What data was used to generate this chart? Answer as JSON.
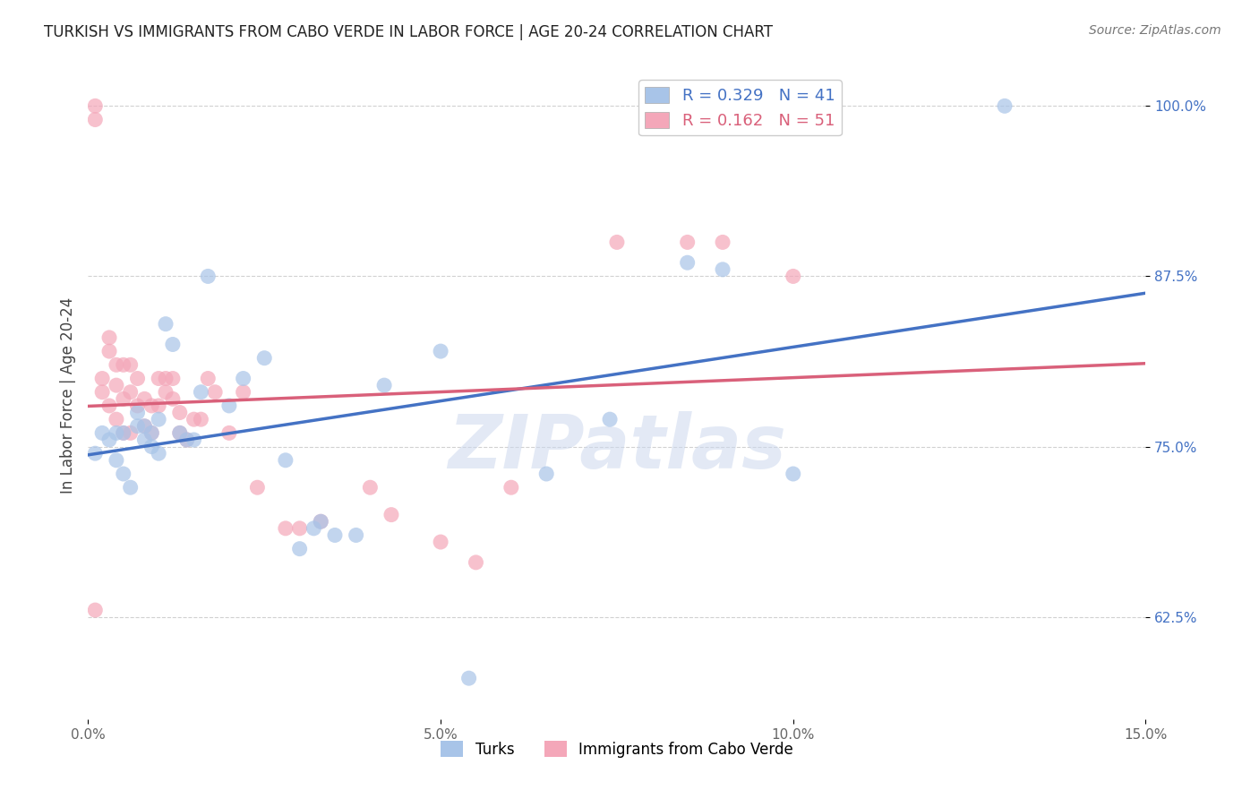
{
  "title": "TURKISH VS IMMIGRANTS FROM CABO VERDE IN LABOR FORCE | AGE 20-24 CORRELATION CHART",
  "source": "Source: ZipAtlas.com",
  "ylabel": "In Labor Force | Age 20-24",
  "xlim": [
    0.0,
    0.15
  ],
  "ylim": [
    0.55,
    1.025
  ],
  "yticks": [
    0.625,
    0.75,
    0.875,
    1.0
  ],
  "ytick_labels": [
    "62.5%",
    "75.0%",
    "87.5%",
    "100.0%"
  ],
  "xticks": [
    0.0,
    0.05,
    0.1,
    0.15
  ],
  "xtick_labels": [
    "0.0%",
    "5.0%",
    "10.0%",
    "15.0%"
  ],
  "legend_R_turks": "R = 0.329",
  "legend_N_turks": "N = 41",
  "legend_R_cabo": "R = 0.162",
  "legend_N_cabo": "N = 51",
  "turks_color": "#a8c4e8",
  "cabo_color": "#f4a7b9",
  "turks_line_color": "#4472c4",
  "cabo_line_color": "#d9607a",
  "watermark": "ZIPatlas",
  "turks_x": [
    0.001,
    0.002,
    0.003,
    0.004,
    0.004,
    0.005,
    0.005,
    0.006,
    0.007,
    0.007,
    0.008,
    0.008,
    0.009,
    0.009,
    0.01,
    0.01,
    0.011,
    0.012,
    0.013,
    0.014,
    0.015,
    0.016,
    0.017,
    0.02,
    0.022,
    0.025,
    0.028,
    0.03,
    0.032,
    0.033,
    0.035,
    0.038,
    0.042,
    0.05,
    0.054,
    0.065,
    0.074,
    0.085,
    0.09,
    0.1,
    0.13
  ],
  "turks_y": [
    0.745,
    0.76,
    0.755,
    0.74,
    0.76,
    0.73,
    0.76,
    0.72,
    0.765,
    0.775,
    0.755,
    0.765,
    0.75,
    0.76,
    0.745,
    0.77,
    0.84,
    0.825,
    0.76,
    0.755,
    0.755,
    0.79,
    0.875,
    0.78,
    0.8,
    0.815,
    0.74,
    0.675,
    0.69,
    0.695,
    0.685,
    0.685,
    0.795,
    0.82,
    0.58,
    0.73,
    0.77,
    0.885,
    0.88,
    0.73,
    1.0
  ],
  "cabo_x": [
    0.001,
    0.001,
    0.001,
    0.002,
    0.002,
    0.003,
    0.003,
    0.003,
    0.004,
    0.004,
    0.004,
    0.005,
    0.005,
    0.005,
    0.006,
    0.006,
    0.006,
    0.007,
    0.007,
    0.008,
    0.008,
    0.009,
    0.009,
    0.01,
    0.01,
    0.011,
    0.011,
    0.012,
    0.012,
    0.013,
    0.013,
    0.014,
    0.015,
    0.016,
    0.017,
    0.018,
    0.02,
    0.022,
    0.024,
    0.028,
    0.03,
    0.033,
    0.04,
    0.043,
    0.05,
    0.055,
    0.06,
    0.075,
    0.085,
    0.09,
    0.1
  ],
  "cabo_y": [
    0.99,
    1.0,
    0.63,
    0.79,
    0.8,
    0.78,
    0.82,
    0.83,
    0.77,
    0.795,
    0.81,
    0.76,
    0.785,
    0.81,
    0.76,
    0.79,
    0.81,
    0.78,
    0.8,
    0.765,
    0.785,
    0.76,
    0.78,
    0.78,
    0.8,
    0.79,
    0.8,
    0.785,
    0.8,
    0.76,
    0.775,
    0.755,
    0.77,
    0.77,
    0.8,
    0.79,
    0.76,
    0.79,
    0.72,
    0.69,
    0.69,
    0.695,
    0.72,
    0.7,
    0.68,
    0.665,
    0.72,
    0.9,
    0.9,
    0.9,
    0.875
  ]
}
